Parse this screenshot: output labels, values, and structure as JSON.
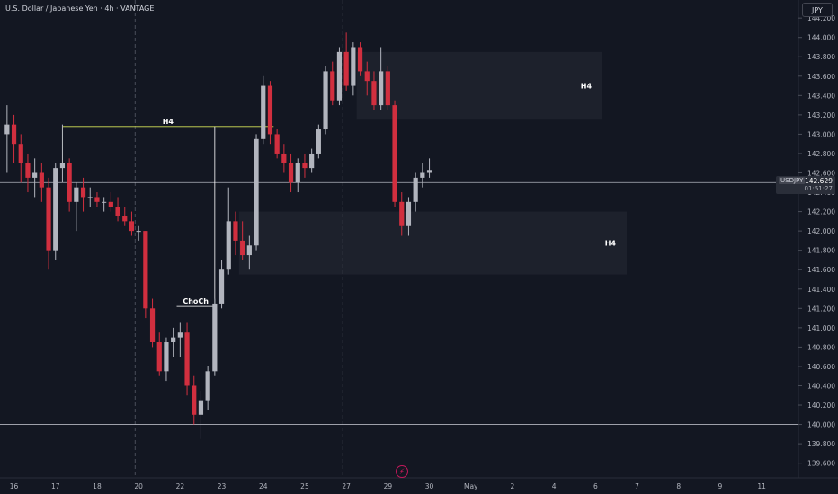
{
  "header": {
    "symbol_title": "U.S. Dollar / Japanese Yen · 4h · VANTAGE",
    "currency_button": "JPY"
  },
  "price_badge": {
    "symbol": "USDJPY",
    "price": "142.629",
    "timer": "01:51:27"
  },
  "chart_data": {
    "type": "candlestick",
    "title": "",
    "ylim": [
      139.5,
      144.35
    ],
    "y_ticks": [
      "144.200",
      "144.000",
      "143.800",
      "143.600",
      "143.400",
      "143.200",
      "143.000",
      "142.800",
      "142.600",
      "142.400",
      "142.200",
      "142.000",
      "141.800",
      "141.600",
      "141.400",
      "141.200",
      "141.000",
      "140.800",
      "140.600",
      "140.400",
      "140.200",
      "140.000",
      "139.800",
      "139.600"
    ],
    "x_ticks": [
      {
        "label": "16",
        "idx": 1.5
      },
      {
        "label": "17",
        "idx": 7.5
      },
      {
        "label": "18",
        "idx": 13.5
      },
      {
        "label": "20",
        "idx": 19.5
      },
      {
        "label": "22",
        "idx": 25.5
      },
      {
        "label": "23",
        "idx": 31.5
      },
      {
        "label": "24",
        "idx": 37.5
      },
      {
        "label": "25",
        "idx": 43.5
      },
      {
        "label": "27",
        "idx": 49.5
      },
      {
        "label": "29",
        "idx": 55.5
      },
      {
        "label": "30",
        "idx": 61.5
      },
      {
        "label": "May",
        "idx": 67.5
      },
      {
        "label": "2",
        "idx": 73.5
      },
      {
        "label": "4",
        "idx": 79.5
      },
      {
        "label": "6",
        "idx": 85.5
      },
      {
        "label": "7",
        "idx": 91.5
      },
      {
        "label": "8",
        "idx": 97.5
      },
      {
        "label": "9",
        "idx": 103.5
      },
      {
        "label": "11",
        "idx": 109.5
      }
    ],
    "week_separators": [
      19,
      49
    ],
    "candles": [
      {
        "o": 143.0,
        "h": 143.3,
        "l": 142.6,
        "c": 143.1
      },
      {
        "o": 143.1,
        "h": 143.2,
        "l": 142.7,
        "c": 142.9
      },
      {
        "o": 142.9,
        "h": 143.0,
        "l": 142.5,
        "c": 142.7
      },
      {
        "o": 142.7,
        "h": 142.8,
        "l": 142.4,
        "c": 142.55
      },
      {
        "o": 142.55,
        "h": 142.75,
        "l": 142.35,
        "c": 142.6
      },
      {
        "o": 142.6,
        "h": 142.7,
        "l": 142.3,
        "c": 142.45
      },
      {
        "o": 142.45,
        "h": 142.55,
        "l": 141.6,
        "c": 141.8
      },
      {
        "o": 141.8,
        "h": 142.7,
        "l": 141.7,
        "c": 142.65
      },
      {
        "o": 142.65,
        "h": 143.1,
        "l": 142.5,
        "c": 142.7
      },
      {
        "o": 142.7,
        "h": 142.75,
        "l": 142.2,
        "c": 142.3
      },
      {
        "o": 142.3,
        "h": 142.5,
        "l": 142.0,
        "c": 142.45
      },
      {
        "o": 142.45,
        "h": 142.55,
        "l": 142.2,
        "c": 142.35
      },
      {
        "o": 142.35,
        "h": 142.45,
        "l": 142.25,
        "c": 142.35
      },
      {
        "o": 142.35,
        "h": 142.4,
        "l": 142.25,
        "c": 142.3
      },
      {
        "o": 142.3,
        "h": 142.35,
        "l": 142.2,
        "c": 142.3
      },
      {
        "o": 142.3,
        "h": 142.4,
        "l": 142.2,
        "c": 142.25
      },
      {
        "o": 142.25,
        "h": 142.35,
        "l": 142.1,
        "c": 142.15
      },
      {
        "o": 142.15,
        "h": 142.25,
        "l": 142.05,
        "c": 142.1
      },
      {
        "o": 142.1,
        "h": 142.2,
        "l": 141.95,
        "c": 142.0
      },
      {
        "o": 142.0,
        "h": 142.05,
        "l": 141.9,
        "c": 142.0
      },
      {
        "o": 142.0,
        "h": 142.0,
        "l": 141.1,
        "c": 141.2
      },
      {
        "o": 141.2,
        "h": 141.3,
        "l": 140.8,
        "c": 140.85
      },
      {
        "o": 140.85,
        "h": 140.95,
        "l": 140.5,
        "c": 140.55
      },
      {
        "o": 140.55,
        "h": 140.9,
        "l": 140.45,
        "c": 140.85
      },
      {
        "o": 140.85,
        "h": 141.0,
        "l": 140.7,
        "c": 140.9
      },
      {
        "o": 140.9,
        "h": 141.05,
        "l": 140.7,
        "c": 140.95
      },
      {
        "o": 140.95,
        "h": 141.05,
        "l": 140.3,
        "c": 140.4
      },
      {
        "o": 140.4,
        "h": 140.5,
        "l": 140.0,
        "c": 140.1
      },
      {
        "o": 140.1,
        "h": 140.35,
        "l": 139.85,
        "c": 140.25
      },
      {
        "o": 140.25,
        "h": 140.6,
        "l": 140.15,
        "c": 140.55
      },
      {
        "o": 140.55,
        "h": 141.3,
        "l": 140.5,
        "c": 141.25
      },
      {
        "o": 141.25,
        "h": 141.7,
        "l": 141.2,
        "c": 141.6
      },
      {
        "o": 141.6,
        "h": 142.45,
        "l": 141.55,
        "c": 142.1
      },
      {
        "o": 142.1,
        "h": 142.2,
        "l": 141.75,
        "c": 141.9
      },
      {
        "o": 141.9,
        "h": 142.1,
        "l": 141.7,
        "c": 141.75
      },
      {
        "o": 141.75,
        "h": 141.95,
        "l": 141.6,
        "c": 141.85
      },
      {
        "o": 141.85,
        "h": 143.0,
        "l": 141.8,
        "c": 142.95
      },
      {
        "o": 142.95,
        "h": 143.6,
        "l": 142.9,
        "c": 143.5
      },
      {
        "o": 143.5,
        "h": 143.55,
        "l": 142.9,
        "c": 143.0
      },
      {
        "o": 143.0,
        "h": 143.05,
        "l": 142.75,
        "c": 142.8
      },
      {
        "o": 142.8,
        "h": 142.9,
        "l": 142.6,
        "c": 142.7
      },
      {
        "o": 142.7,
        "h": 142.8,
        "l": 142.4,
        "c": 142.5
      },
      {
        "o": 142.5,
        "h": 142.75,
        "l": 142.4,
        "c": 142.7
      },
      {
        "o": 142.7,
        "h": 142.8,
        "l": 142.55,
        "c": 142.65
      },
      {
        "o": 142.65,
        "h": 142.85,
        "l": 142.6,
        "c": 142.8
      },
      {
        "o": 142.8,
        "h": 143.1,
        "l": 142.75,
        "c": 143.05
      },
      {
        "o": 143.05,
        "h": 143.7,
        "l": 143.0,
        "c": 143.65
      },
      {
        "o": 143.65,
        "h": 143.75,
        "l": 143.3,
        "c": 143.35
      },
      {
        "o": 143.35,
        "h": 143.9,
        "l": 143.3,
        "c": 143.85
      },
      {
        "o": 143.85,
        "h": 144.05,
        "l": 143.45,
        "c": 143.5
      },
      {
        "o": 143.5,
        "h": 143.95,
        "l": 143.4,
        "c": 143.9
      },
      {
        "o": 143.9,
        "h": 143.95,
        "l": 143.6,
        "c": 143.65
      },
      {
        "o": 143.65,
        "h": 143.75,
        "l": 143.4,
        "c": 143.55
      },
      {
        "o": 143.55,
        "h": 143.65,
        "l": 143.25,
        "c": 143.3
      },
      {
        "o": 143.3,
        "h": 143.9,
        "l": 143.25,
        "c": 143.65
      },
      {
        "o": 143.65,
        "h": 143.7,
        "l": 143.25,
        "c": 143.3
      },
      {
        "o": 143.3,
        "h": 143.35,
        "l": 142.25,
        "c": 142.3
      },
      {
        "o": 142.3,
        "h": 142.4,
        "l": 141.95,
        "c": 142.05
      },
      {
        "o": 142.05,
        "h": 142.35,
        "l": 141.95,
        "c": 142.3
      },
      {
        "o": 142.3,
        "h": 142.6,
        "l": 142.2,
        "c": 142.55
      },
      {
        "o": 142.55,
        "h": 142.7,
        "l": 142.45,
        "c": 142.6
      },
      {
        "o": 142.6,
        "h": 142.75,
        "l": 142.55,
        "c": 142.63
      }
    ],
    "zones": [
      {
        "label": "H4",
        "from_idx": 51,
        "to_idx": 86.5,
        "top": 143.85,
        "bottom": 143.15
      },
      {
        "label": "H4",
        "from_idx": 34,
        "to_idx": 90,
        "top": 142.2,
        "bottom": 141.55
      }
    ],
    "annotations": [
      {
        "label": "H4",
        "type": "level",
        "price": 143.08,
        "from_idx": 8.5,
        "to_idx": 39,
        "color": "#d4e157"
      },
      {
        "label": "ChoCh",
        "type": "level",
        "price": 141.22,
        "from_idx": 25,
        "to_idx": 30.5,
        "color": "#ffffff"
      }
    ],
    "choch_vline": {
      "idx": 30.5,
      "from": 143.08,
      "to": 141.22
    },
    "horizontal_lines": [
      {
        "price": 142.5,
        "color": "#b2b5be"
      },
      {
        "price": 140.0,
        "color": "#b2b5be"
      }
    ],
    "colors": {
      "up": "#b2b5be",
      "down": "#d12f3f",
      "background": "#131722",
      "zone": "#1e222d"
    }
  }
}
